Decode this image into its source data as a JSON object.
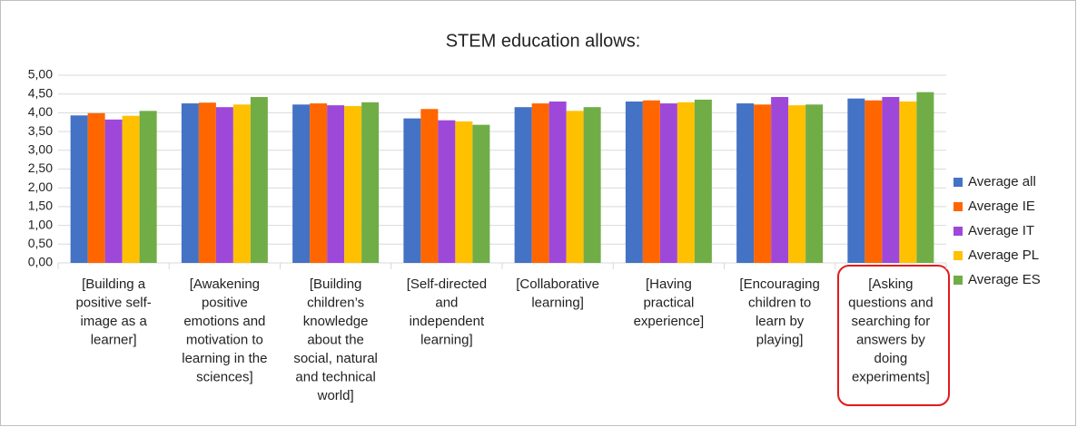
{
  "chart_data": {
    "type": "bar",
    "title": "STEM education allows:",
    "categories": [
      [
        "[Building a",
        "positive self-",
        "image as a",
        "learner]"
      ],
      [
        "[Awakening",
        "positive",
        "emotions and",
        "motivation to",
        "learning in the",
        "sciences]"
      ],
      [
        "[Building",
        "children’s",
        "knowledge",
        "about the",
        "social, natural",
        "and technical",
        "world]"
      ],
      [
        "[Self-directed",
        "and",
        "independent",
        "learning]"
      ],
      [
        "[Collaborative",
        "learning]"
      ],
      [
        "[Having",
        "practical",
        "experience]"
      ],
      [
        "[Encouraging",
        "children to",
        "learn by",
        "playing]"
      ],
      [
        "[Asking",
        "questions and",
        "searching for",
        "answers by",
        "doing",
        "experiments]"
      ]
    ],
    "series": [
      {
        "name": "Average all",
        "color": "#4472c4",
        "values": [
          3.93,
          4.25,
          4.22,
          3.85,
          4.15,
          4.3,
          4.25,
          4.38
        ]
      },
      {
        "name": "Average IE",
        "color": "#ff6600",
        "values": [
          3.99,
          4.27,
          4.25,
          4.1,
          4.25,
          4.33,
          4.22,
          4.33
        ]
      },
      {
        "name": "Average IT",
        "color": "#9e48d9",
        "values": [
          3.82,
          4.15,
          4.2,
          3.8,
          4.3,
          4.25,
          4.42,
          4.42
        ]
      },
      {
        "name": "Average PL",
        "color": "#ffc000",
        "values": [
          3.92,
          4.22,
          4.18,
          3.77,
          4.05,
          4.28,
          4.2,
          4.3
        ]
      },
      {
        "name": "Average ES",
        "color": "#70ad47",
        "values": [
          4.05,
          4.42,
          4.28,
          3.68,
          4.15,
          4.35,
          4.22,
          4.55
        ]
      }
    ],
    "ylim": [
      0,
      5
    ],
    "yticks": [
      {
        "value": 0,
        "label": "0,00"
      },
      {
        "value": 0.5,
        "label": "0,50"
      },
      {
        "value": 1,
        "label": "1,00"
      },
      {
        "value": 1.5,
        "label": "1,50"
      },
      {
        "value": 2,
        "label": "2,00"
      },
      {
        "value": 2.5,
        "label": "2,50"
      },
      {
        "value": 3,
        "label": "3,00"
      },
      {
        "value": 3.5,
        "label": "3,50"
      },
      {
        "value": 4,
        "label": "4,00"
      },
      {
        "value": 4.5,
        "label": "4,50"
      },
      {
        "value": 5,
        "label": "5,00"
      }
    ],
    "grid": true,
    "legend": "right"
  }
}
